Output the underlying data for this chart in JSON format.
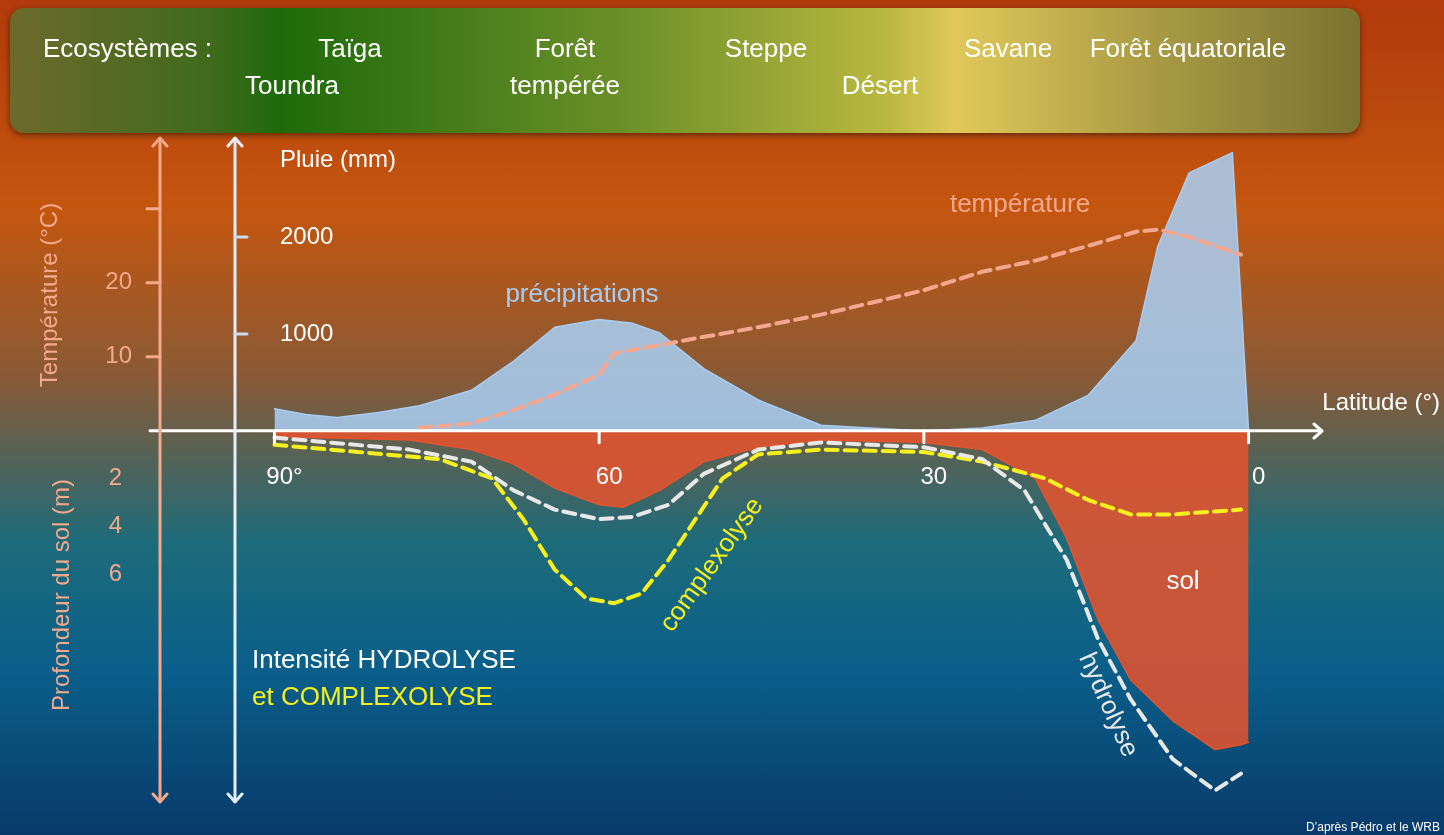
{
  "chart_data": {
    "type": "line",
    "xlabel": "Latitude (°)",
    "ylabel": "Température (°C)",
    "y2label": "Pluie (mm)",
    "y3label": "Profondeur du sol (m)",
    "xlim": [
      101.5,
      -6.6
    ],
    "xticks": [
      {
        "value": 90,
        "label": "90°"
      },
      60,
      30,
      0
    ],
    "ylim": [
      -49.9,
      39.3
    ],
    "yticks": [
      10,
      20,
      {
        "value": 30,
        "label": null
      }
    ],
    "y2lim": [
      -3804,
      3000
    ],
    "y2ticks": [
      1000,
      2000
    ],
    "y3lim": [
      15.4,
      -12.1
    ],
    "y3ticks": [
      2,
      4,
      6
    ],
    "marker": "none",
    "series": [
      {
        "name": "précipitations",
        "type": "area",
        "axis": "y2",
        "color": "#a9cdf2",
        "x": [
          90,
          87.1,
          84.2,
          80.4,
          76.6,
          71.8,
          67.9,
          64.1,
          60,
          56.9,
          54.4,
          50.3,
          45.3,
          39.5,
          30,
          24.6,
          19.7,
          14.8,
          10.4,
          8.4,
          5.5,
          1.5,
          0
        ],
        "values": [
          230,
          170,
          140,
          190,
          260,
          420,
          720,
          1070,
          1150,
          1110,
          1010,
          640,
          320,
          60,
          0,
          30,
          110,
          370,
          930,
          1900,
          2660,
          2870,
          0
        ]
      },
      {
        "name": "température",
        "type": "line",
        "axis": "y",
        "color": "#f4a68e",
        "line_style": "dashed",
        "x": [
          76.6,
          71.8,
          67.9,
          64.1,
          60,
          58.6,
          54.4,
          50.3,
          45.3,
          39.5,
          33.7,
          30,
          24.6,
          19.7,
          14.8,
          10.4,
          8.4,
          5.5,
          0.7
        ],
        "values": [
          0.4,
          1,
          2.8,
          4.9,
          7.6,
          10.5,
          11.6,
          12.7,
          14,
          15.7,
          17.7,
          19,
          21.5,
          23,
          25,
          26.9,
          27.2,
          26.2,
          23.8
        ]
      },
      {
        "name": "sol",
        "type": "area",
        "axis": "y3",
        "color": "#e5532e",
        "x": [
          90,
          77.5,
          71.8,
          67.9,
          64.1,
          60,
          57.8,
          54.4,
          50.3,
          45.3,
          39.5,
          30,
          24.6,
          19.7,
          16.8,
          13.9,
          10.9,
          7.0,
          3.1,
          0.7,
          0
        ],
        "values": [
          0.25,
          0.4,
          0.8,
          1.4,
          2.4,
          3.1,
          3.2,
          2.5,
          1.3,
          0.7,
          0.4,
          0.5,
          0.8,
          2.0,
          4.5,
          7.9,
          10.4,
          12.1,
          13.3,
          13.1,
          13.0
        ]
      },
      {
        "name": "hydrolyse",
        "type": "line",
        "axis": "y3",
        "color": "#e8e8e8",
        "line_style": "dashed",
        "x": [
          90,
          77.5,
          71.8,
          67.9,
          64.1,
          60,
          56.9,
          53.6,
          50.3,
          45.3,
          39.5,
          30,
          24.6,
          20.7,
          16.8,
          13.9,
          10.9,
          7.0,
          3.1,
          0.7
        ],
        "values": [
          0.3,
          0.8,
          1.3,
          2.5,
          3.3,
          3.7,
          3.6,
          3.1,
          1.8,
          0.8,
          0.5,
          0.7,
          1.2,
          2.5,
          5.4,
          8.7,
          11.2,
          13.7,
          15.0,
          14.3
        ]
      },
      {
        "name": "complexolyse",
        "type": "line",
        "axis": "y3",
        "color": "#f5f01e",
        "line_style": "dashed",
        "x": [
          90,
          82.3,
          74.7,
          69.9,
          67.0,
          64.1,
          61.2,
          58.6,
          56.1,
          53.6,
          51.1,
          48.6,
          45.3,
          39.5,
          30,
          24.6,
          18.8,
          14.8,
          10.9,
          7.0,
          0.7
        ],
        "values": [
          0.6,
          0.9,
          1.2,
          2.0,
          3.7,
          5.8,
          7.0,
          7.2,
          6.8,
          5.4,
          3.7,
          2.0,
          1.0,
          0.8,
          0.9,
          1.3,
          2.0,
          2.9,
          3.5,
          3.5,
          3.3
        ]
      }
    ],
    "annotations": [
      "Ecosystèmes :",
      "Taïga",
      "Toundra",
      "Forêt tempérée",
      "Steppe",
      "Désert",
      "Savane",
      "Forêt équatoriale",
      "Intensité HYDROLYSE",
      "et COMPLEXOLYSE",
      "D’après Pédro et le WRB"
    ]
  }
}
